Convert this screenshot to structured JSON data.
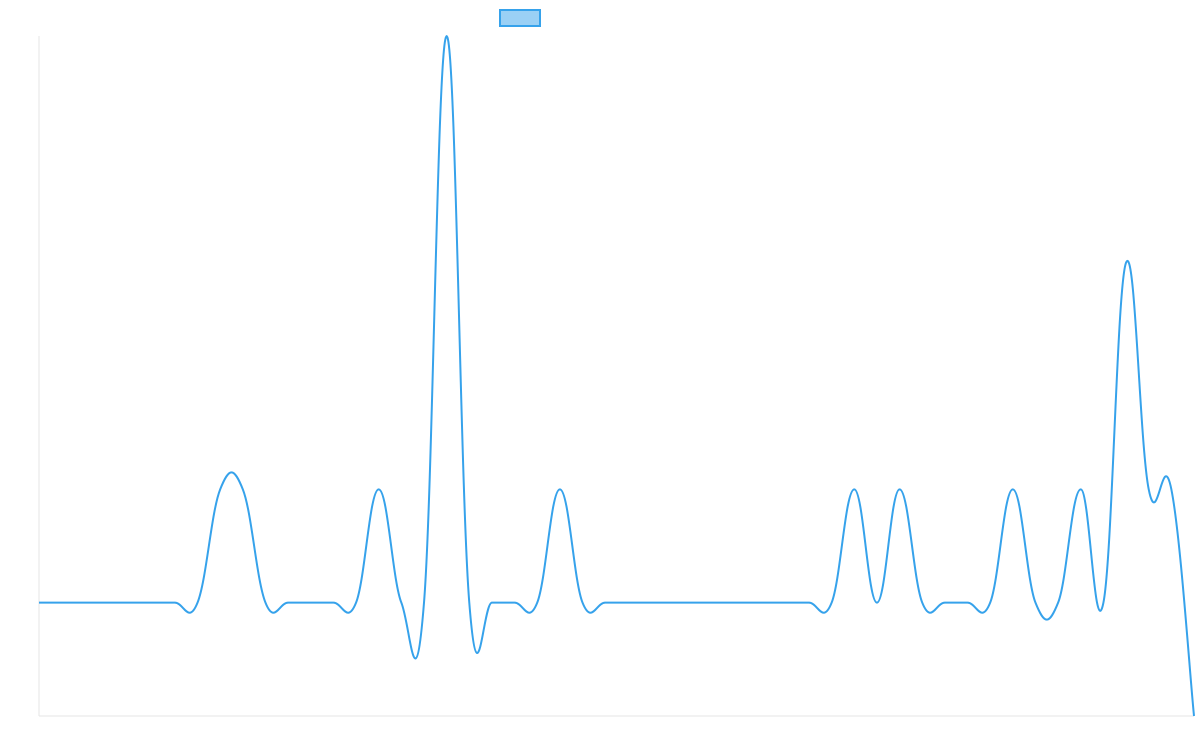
{
  "chart_data": {
    "type": "line",
    "title": "",
    "xlabel": "",
    "ylabel": "",
    "grid": false,
    "legend": {
      "position": "top",
      "entries": [
        {
          "name": ""
        }
      ]
    },
    "colors": {
      "line": "#36a2eb",
      "fill": "#9ad0f5",
      "axis": "#e6e6e6"
    },
    "x": [
      0,
      1,
      2,
      3,
      4,
      5,
      6,
      7,
      8,
      9,
      10,
      11,
      12,
      13,
      14,
      15,
      16,
      17,
      18,
      19,
      20,
      21,
      22,
      23,
      24,
      25,
      26,
      27,
      28,
      29,
      30,
      31,
      32,
      33,
      34,
      35,
      36,
      37,
      38,
      39,
      40,
      41,
      42,
      43,
      44,
      45,
      46,
      47,
      48,
      49,
      50,
      51
    ],
    "xlim": [
      0,
      51
    ],
    "ylim": [
      -1,
      5
    ],
    "series": [
      {
        "name": "",
        "values": [
          0,
          0,
          0,
          0,
          0,
          0,
          0,
          0,
          1,
          1,
          0,
          0,
          0,
          0,
          0,
          1,
          0,
          0,
          5,
          0,
          0,
          0,
          0,
          1,
          0,
          0,
          0,
          0,
          0,
          0,
          0,
          0,
          0,
          0,
          0,
          0,
          1,
          0,
          1,
          0,
          0,
          0,
          0,
          1,
          0,
          0,
          1,
          0,
          3,
          1,
          1,
          -1
        ]
      }
    ]
  }
}
